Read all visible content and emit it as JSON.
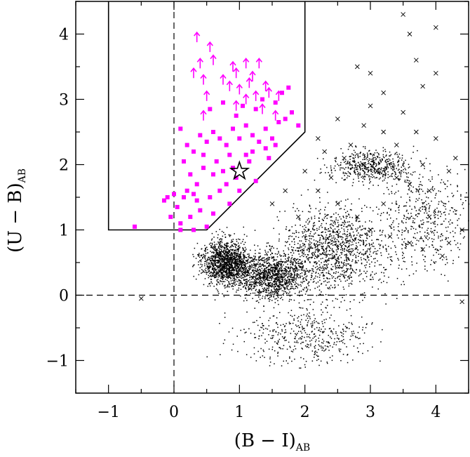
{
  "chart_data": {
    "type": "scatter",
    "title": "",
    "xlabel_main": "(B − I)",
    "xlabel_sub": "AB",
    "ylabel_main": "(U − B)",
    "ylabel_sub": "AB",
    "xlim": [
      -1.5,
      4.5
    ],
    "ylim": [
      -1.5,
      4.5
    ],
    "x_ticks": [
      -1,
      0,
      1,
      2,
      3,
      4
    ],
    "x_tick_labels": [
      "−1",
      "0",
      "1",
      "2",
      "3",
      "4"
    ],
    "y_ticks": [
      -1,
      0,
      1,
      2,
      3,
      4
    ],
    "y_tick_labels": [
      "−1",
      "0",
      "1",
      "2",
      "3",
      "4"
    ],
    "grid": false,
    "legend": "none",
    "colors": {
      "selected": "#ff00ff",
      "field": "#000000",
      "axes": "#000000"
    },
    "selection_region": [
      [
        -1,
        4.5
      ],
      [
        -1,
        1
      ],
      [
        0.5,
        1
      ],
      [
        2,
        2.5
      ],
      [
        2,
        4.5
      ]
    ],
    "reference_lines": {
      "x": 0,
      "y": 0,
      "style": "dashed"
    },
    "series": [
      {
        "kind": "selected-detections",
        "marker": "filled-square",
        "points": [
          [
            0.1,
            2.55
          ],
          [
            0.2,
            2.3
          ],
          [
            0.15,
            2.05
          ],
          [
            0.3,
            2.2
          ],
          [
            0.4,
            2.45
          ],
          [
            0.5,
            2.35
          ],
          [
            0.6,
            2.5
          ],
          [
            0.7,
            2.4
          ],
          [
            0.8,
            2.3
          ],
          [
            0.9,
            2.55
          ],
          [
            1.0,
            2.4
          ],
          [
            1.1,
            2.6
          ],
          [
            1.2,
            2.45
          ],
          [
            1.3,
            2.35
          ],
          [
            1.4,
            2.55
          ],
          [
            1.5,
            2.4
          ],
          [
            1.6,
            2.65
          ],
          [
            1.7,
            2.7
          ],
          [
            1.8,
            2.8
          ],
          [
            1.9,
            2.6
          ],
          [
            0.55,
            2.85
          ],
          [
            0.75,
            2.95
          ],
          [
            1.05,
            2.9
          ],
          [
            1.35,
            3.0
          ],
          [
            1.65,
            3.1
          ],
          [
            1.75,
            3.18
          ],
          [
            0.85,
            2.15
          ],
          [
            1.15,
            2.05
          ],
          [
            1.45,
            2.1
          ],
          [
            0.45,
            1.95
          ],
          [
            0.6,
            1.85
          ],
          [
            0.95,
            1.8
          ],
          [
            1.25,
            1.75
          ],
          [
            0.2,
            1.6
          ],
          [
            0.35,
            1.7
          ],
          [
            0.55,
            1.5
          ],
          [
            0.7,
            1.6
          ],
          [
            0.85,
            1.4
          ],
          [
            0.4,
            1.3
          ],
          [
            0.25,
            1.2
          ],
          [
            0.1,
            1.1
          ],
          [
            0.05,
            1.35
          ],
          [
            0.15,
            1.5
          ],
          [
            0.6,
            1.25
          ],
          [
            0.5,
            1.05
          ],
          [
            -0.1,
            1.5
          ],
          [
            -0.05,
            1.2
          ],
          [
            -0.15,
            1.45
          ],
          [
            0.0,
            1.55
          ],
          [
            0.35,
            1.45
          ],
          [
            0.75,
            1.9
          ],
          [
            0.9,
            1.95
          ],
          [
            1.1,
            2.15
          ],
          [
            1.2,
            2.2
          ],
          [
            0.65,
            2.05
          ],
          [
            0.45,
            2.15
          ],
          [
            0.25,
            1.85
          ],
          [
            0.3,
            1.55
          ],
          [
            0.8,
            1.7
          ],
          [
            1.0,
            1.6
          ],
          [
            -0.6,
            1.05
          ],
          [
            0.1,
            1.0
          ],
          [
            0.3,
            1.0
          ],
          [
            1.4,
            2.25
          ],
          [
            1.55,
            2.3
          ],
          [
            0.95,
            2.75
          ],
          [
            1.25,
            2.85
          ],
          [
            1.55,
            2.95
          ]
        ]
      },
      {
        "kind": "lower-limits",
        "marker": "up-arrow",
        "points": [
          [
            0.35,
            3.95
          ],
          [
            0.4,
            3.55
          ],
          [
            0.55,
            3.8
          ],
          [
            0.6,
            3.6
          ],
          [
            0.3,
            3.4
          ],
          [
            0.45,
            3.3
          ],
          [
            0.9,
            3.5
          ],
          [
            0.95,
            3.4
          ],
          [
            1.1,
            3.55
          ],
          [
            1.3,
            3.55
          ],
          [
            0.85,
            3.2
          ],
          [
            1.0,
            3.15
          ],
          [
            1.15,
            3.25
          ],
          [
            1.25,
            3.05
          ],
          [
            1.45,
            3.1
          ],
          [
            1.6,
            3.05
          ],
          [
            0.5,
            3.05
          ],
          [
            0.45,
            2.75
          ],
          [
            0.95,
            2.9
          ],
          [
            1.1,
            3.0
          ],
          [
            1.35,
            2.85
          ],
          [
            1.55,
            2.75
          ],
          [
            1.4,
            3.2
          ],
          [
            1.2,
            3.35
          ],
          [
            0.75,
            3.3
          ]
        ]
      },
      {
        "kind": "highlighted-source",
        "marker": "star",
        "points": [
          [
            1.0,
            1.9
          ]
        ]
      },
      {
        "kind": "field-galaxies",
        "marker": "dot",
        "clusters": [
          {
            "center": [
              0.8,
              0.5
            ],
            "spread": [
              0.45,
              0.4
            ],
            "n": 1400
          },
          {
            "center": [
              1.5,
              0.3
            ],
            "spread": [
              0.55,
              0.4
            ],
            "n": 1100
          },
          {
            "center": [
              2.4,
              0.7
            ],
            "spread": [
              1.0,
              0.8
            ],
            "n": 1300
          },
          {
            "center": [
              3.0,
              2.0
            ],
            "spread": [
              0.7,
              0.3
            ],
            "n": 500
          },
          {
            "center": [
              3.8,
              1.2
            ],
            "spread": [
              0.8,
              0.9
            ],
            "n": 500
          },
          {
            "center": [
              2.0,
              -0.6
            ],
            "spread": [
              1.3,
              0.5
            ],
            "n": 450
          }
        ]
      },
      {
        "kind": "stars",
        "marker": "x",
        "points": [
          [
            3.6,
            4.0
          ],
          [
            4.0,
            3.4
          ],
          [
            3.8,
            3.2
          ],
          [
            3.2,
            3.1
          ],
          [
            2.8,
            3.5
          ],
          [
            3.0,
            2.9
          ],
          [
            3.5,
            2.8
          ],
          [
            2.5,
            2.7
          ],
          [
            3.2,
            2.5
          ],
          [
            3.7,
            2.5
          ],
          [
            2.3,
            2.2
          ],
          [
            2.6,
            2.1
          ],
          [
            2.9,
            2.0
          ],
          [
            3.1,
            1.9
          ],
          [
            3.4,
            1.8
          ],
          [
            3.6,
            1.7
          ],
          [
            3.9,
            1.6
          ],
          [
            4.2,
            1.9
          ],
          [
            2.0,
            1.9
          ],
          [
            2.2,
            1.6
          ],
          [
            2.5,
            1.4
          ],
          [
            2.8,
            1.2
          ],
          [
            3.0,
            1.0
          ],
          [
            3.3,
            0.9
          ],
          [
            3.6,
            0.8
          ],
          [
            3.8,
            0.7
          ],
          [
            4.1,
            0.6
          ],
          [
            4.4,
            1.0
          ],
          [
            4.2,
            0.8
          ],
          [
            3.9,
            1.2
          ],
          [
            3.2,
            1.4
          ],
          [
            2.4,
            1.8
          ],
          [
            2.7,
            2.3
          ],
          [
            3.4,
            2.3
          ],
          [
            3.8,
            2.0
          ],
          [
            4.0,
            2.4
          ],
          [
            4.3,
            2.1
          ],
          [
            3.7,
            3.6
          ],
          [
            3.0,
            3.4
          ],
          [
            1.7,
            1.6
          ],
          [
            1.5,
            1.4
          ],
          [
            1.9,
            1.2
          ],
          [
            -0.5,
            -0.05
          ],
          [
            4.4,
            -0.1
          ],
          [
            3.5,
            4.3
          ],
          [
            4.0,
            4.1
          ],
          [
            2.9,
            2.6
          ],
          [
            2.2,
            2.4
          ]
        ]
      }
    ]
  }
}
